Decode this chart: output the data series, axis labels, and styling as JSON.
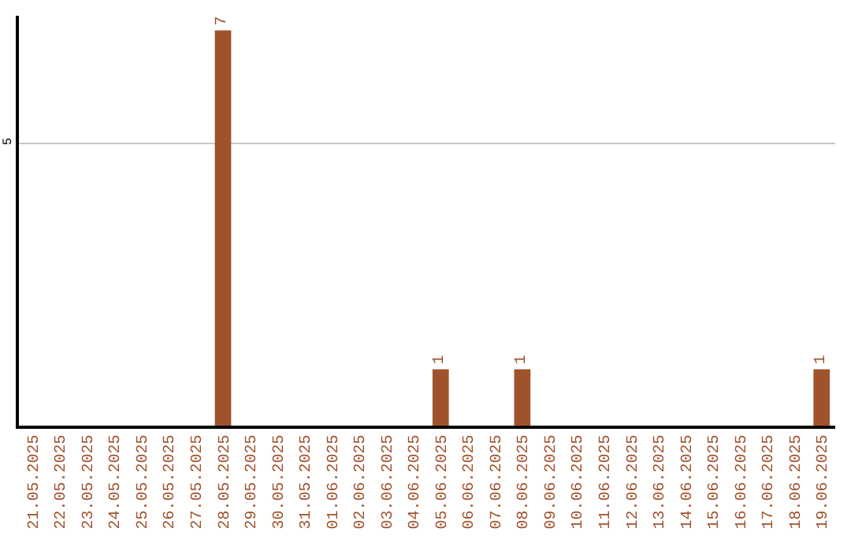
{
  "chart_data": {
    "type": "bar",
    "categories": [
      "21.05.2025",
      "22.05.2025",
      "23.05.2025",
      "24.05.2025",
      "25.05.2025",
      "26.05.2025",
      "27.05.2025",
      "28.05.2025",
      "29.05.2025",
      "30.05.2025",
      "31.05.2025",
      "01.06.2025",
      "02.06.2025",
      "03.06.2025",
      "04.06.2025",
      "05.06.2025",
      "06.06.2025",
      "07.06.2025",
      "08.06.2025",
      "09.06.2025",
      "10.06.2025",
      "11.06.2025",
      "12.06.2025",
      "13.06.2025",
      "14.06.2025",
      "15.06.2025",
      "16.06.2025",
      "17.06.2025",
      "18.06.2025",
      "19.06.2025"
    ],
    "values": [
      0,
      0,
      0,
      0,
      0,
      0,
      0,
      7,
      0,
      0,
      0,
      0,
      0,
      0,
      0,
      1,
      0,
      0,
      1,
      0,
      0,
      0,
      0,
      0,
      0,
      0,
      0,
      0,
      0,
      1
    ],
    "value_labels": [
      null,
      null,
      null,
      null,
      null,
      null,
      null,
      "7",
      null,
      null,
      null,
      null,
      null,
      null,
      null,
      "1",
      null,
      null,
      "1",
      null,
      null,
      null,
      null,
      null,
      null,
      null,
      null,
      null,
      null,
      "1"
    ],
    "color": "#a0522d",
    "ylim": [
      0,
      7.26
    ],
    "yticks": [
      5
    ],
    "grid": "y",
    "legend": false
  }
}
